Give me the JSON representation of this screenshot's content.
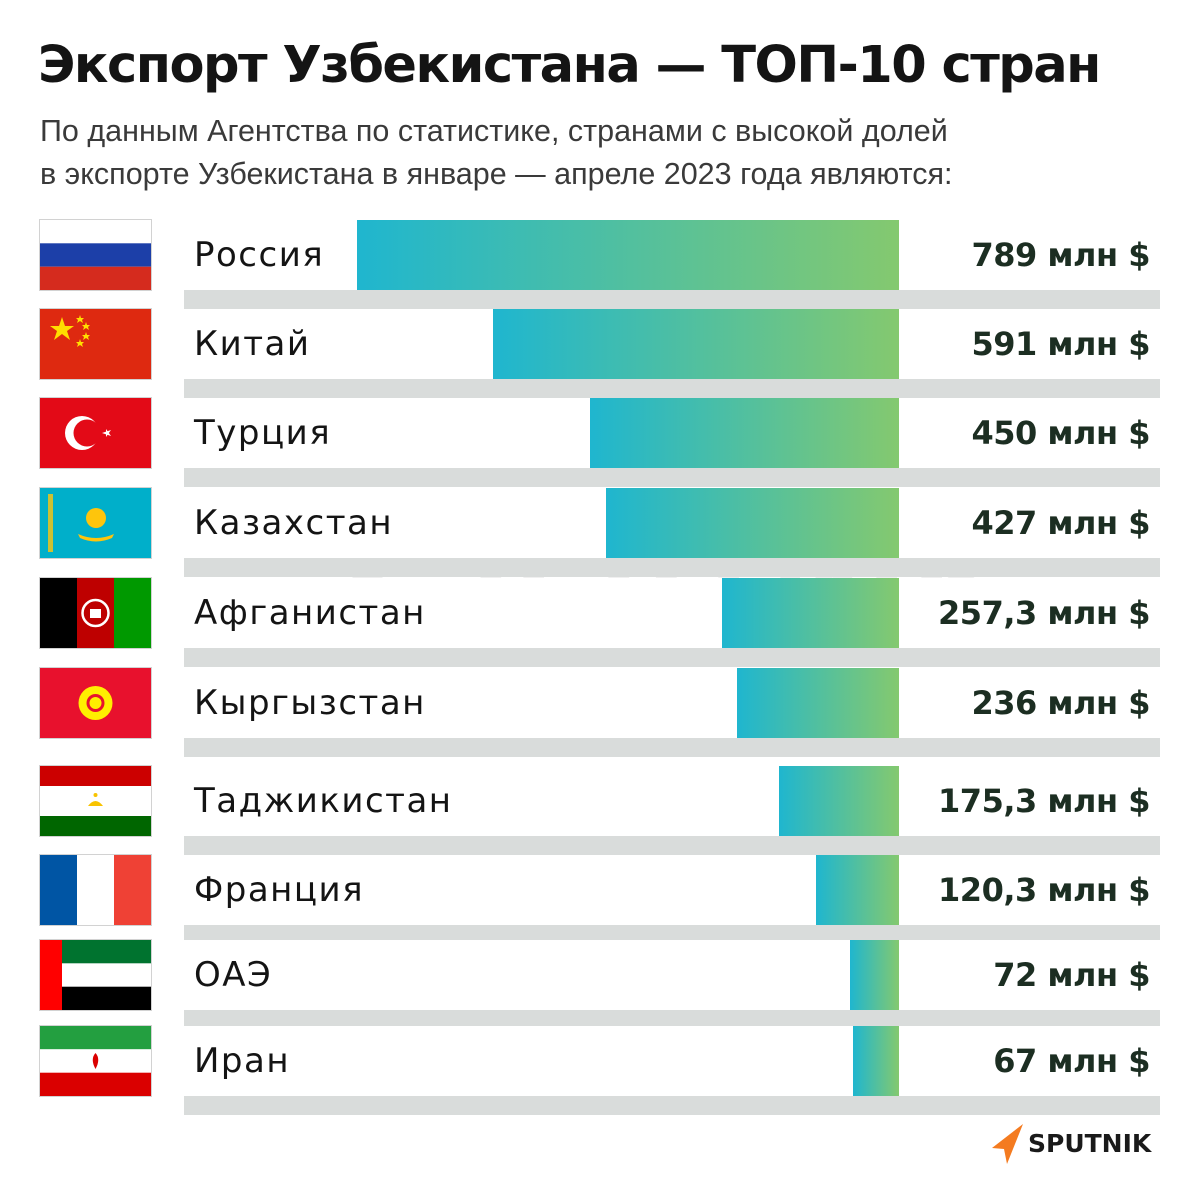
{
  "title": "Экспорт Узбекистана — ТОП-10 стран",
  "subtitle": {
    "line1": "По данным Агентства по статистике, странами с высокой долей",
    "line2": "в экспорте Узбекистана в январе — апреле 2023 года являются:"
  },
  "colors": {
    "bar_start": "#1fb6cf",
    "bar_end": "#84c96f",
    "row_background": "#ffffff",
    "strip": "#d9dcdb",
    "logo_orange": "#f47b20"
  },
  "brand": "SPUTNIK",
  "watermark": "SPUTNIK",
  "chart_data": {
    "type": "bar",
    "orientation": "horizontal",
    "unit": "млн $",
    "categories": [
      "Россия",
      "Китай",
      "Турция",
      "Казахстан",
      "Афганистан",
      "Кыргызстан",
      "Таджикистан",
      "Франция",
      "ОАЭ",
      "Иран"
    ],
    "values": [
      789,
      591,
      450,
      427,
      257.3,
      236,
      175.3,
      120.3,
      72,
      67
    ],
    "value_labels": [
      "789 млн $",
      "591 млн $",
      "450 млн $",
      "427 млн $",
      "257,3 млн $",
      "236 млн $",
      "175,3 млн $",
      "120,3 млн $",
      "72 млн $",
      "67 млн $"
    ],
    "flags": [
      "russia-flag-icon",
      "china-flag-icon",
      "turkey-flag-icon",
      "kazakhstan-flag-icon",
      "afghanistan-flag-icon",
      "kyrgyzstan-flag-icon",
      "tajikistan-flag-icon",
      "france-flag-icon",
      "uae-flag-icon",
      "iran-flag-icon"
    ],
    "title": "Экспорт Узбекистана — ТОП-10 стран",
    "xlabel": "",
    "ylabel": "",
    "xlim": [
      0,
      789
    ],
    "grid": false,
    "legend": "none"
  }
}
